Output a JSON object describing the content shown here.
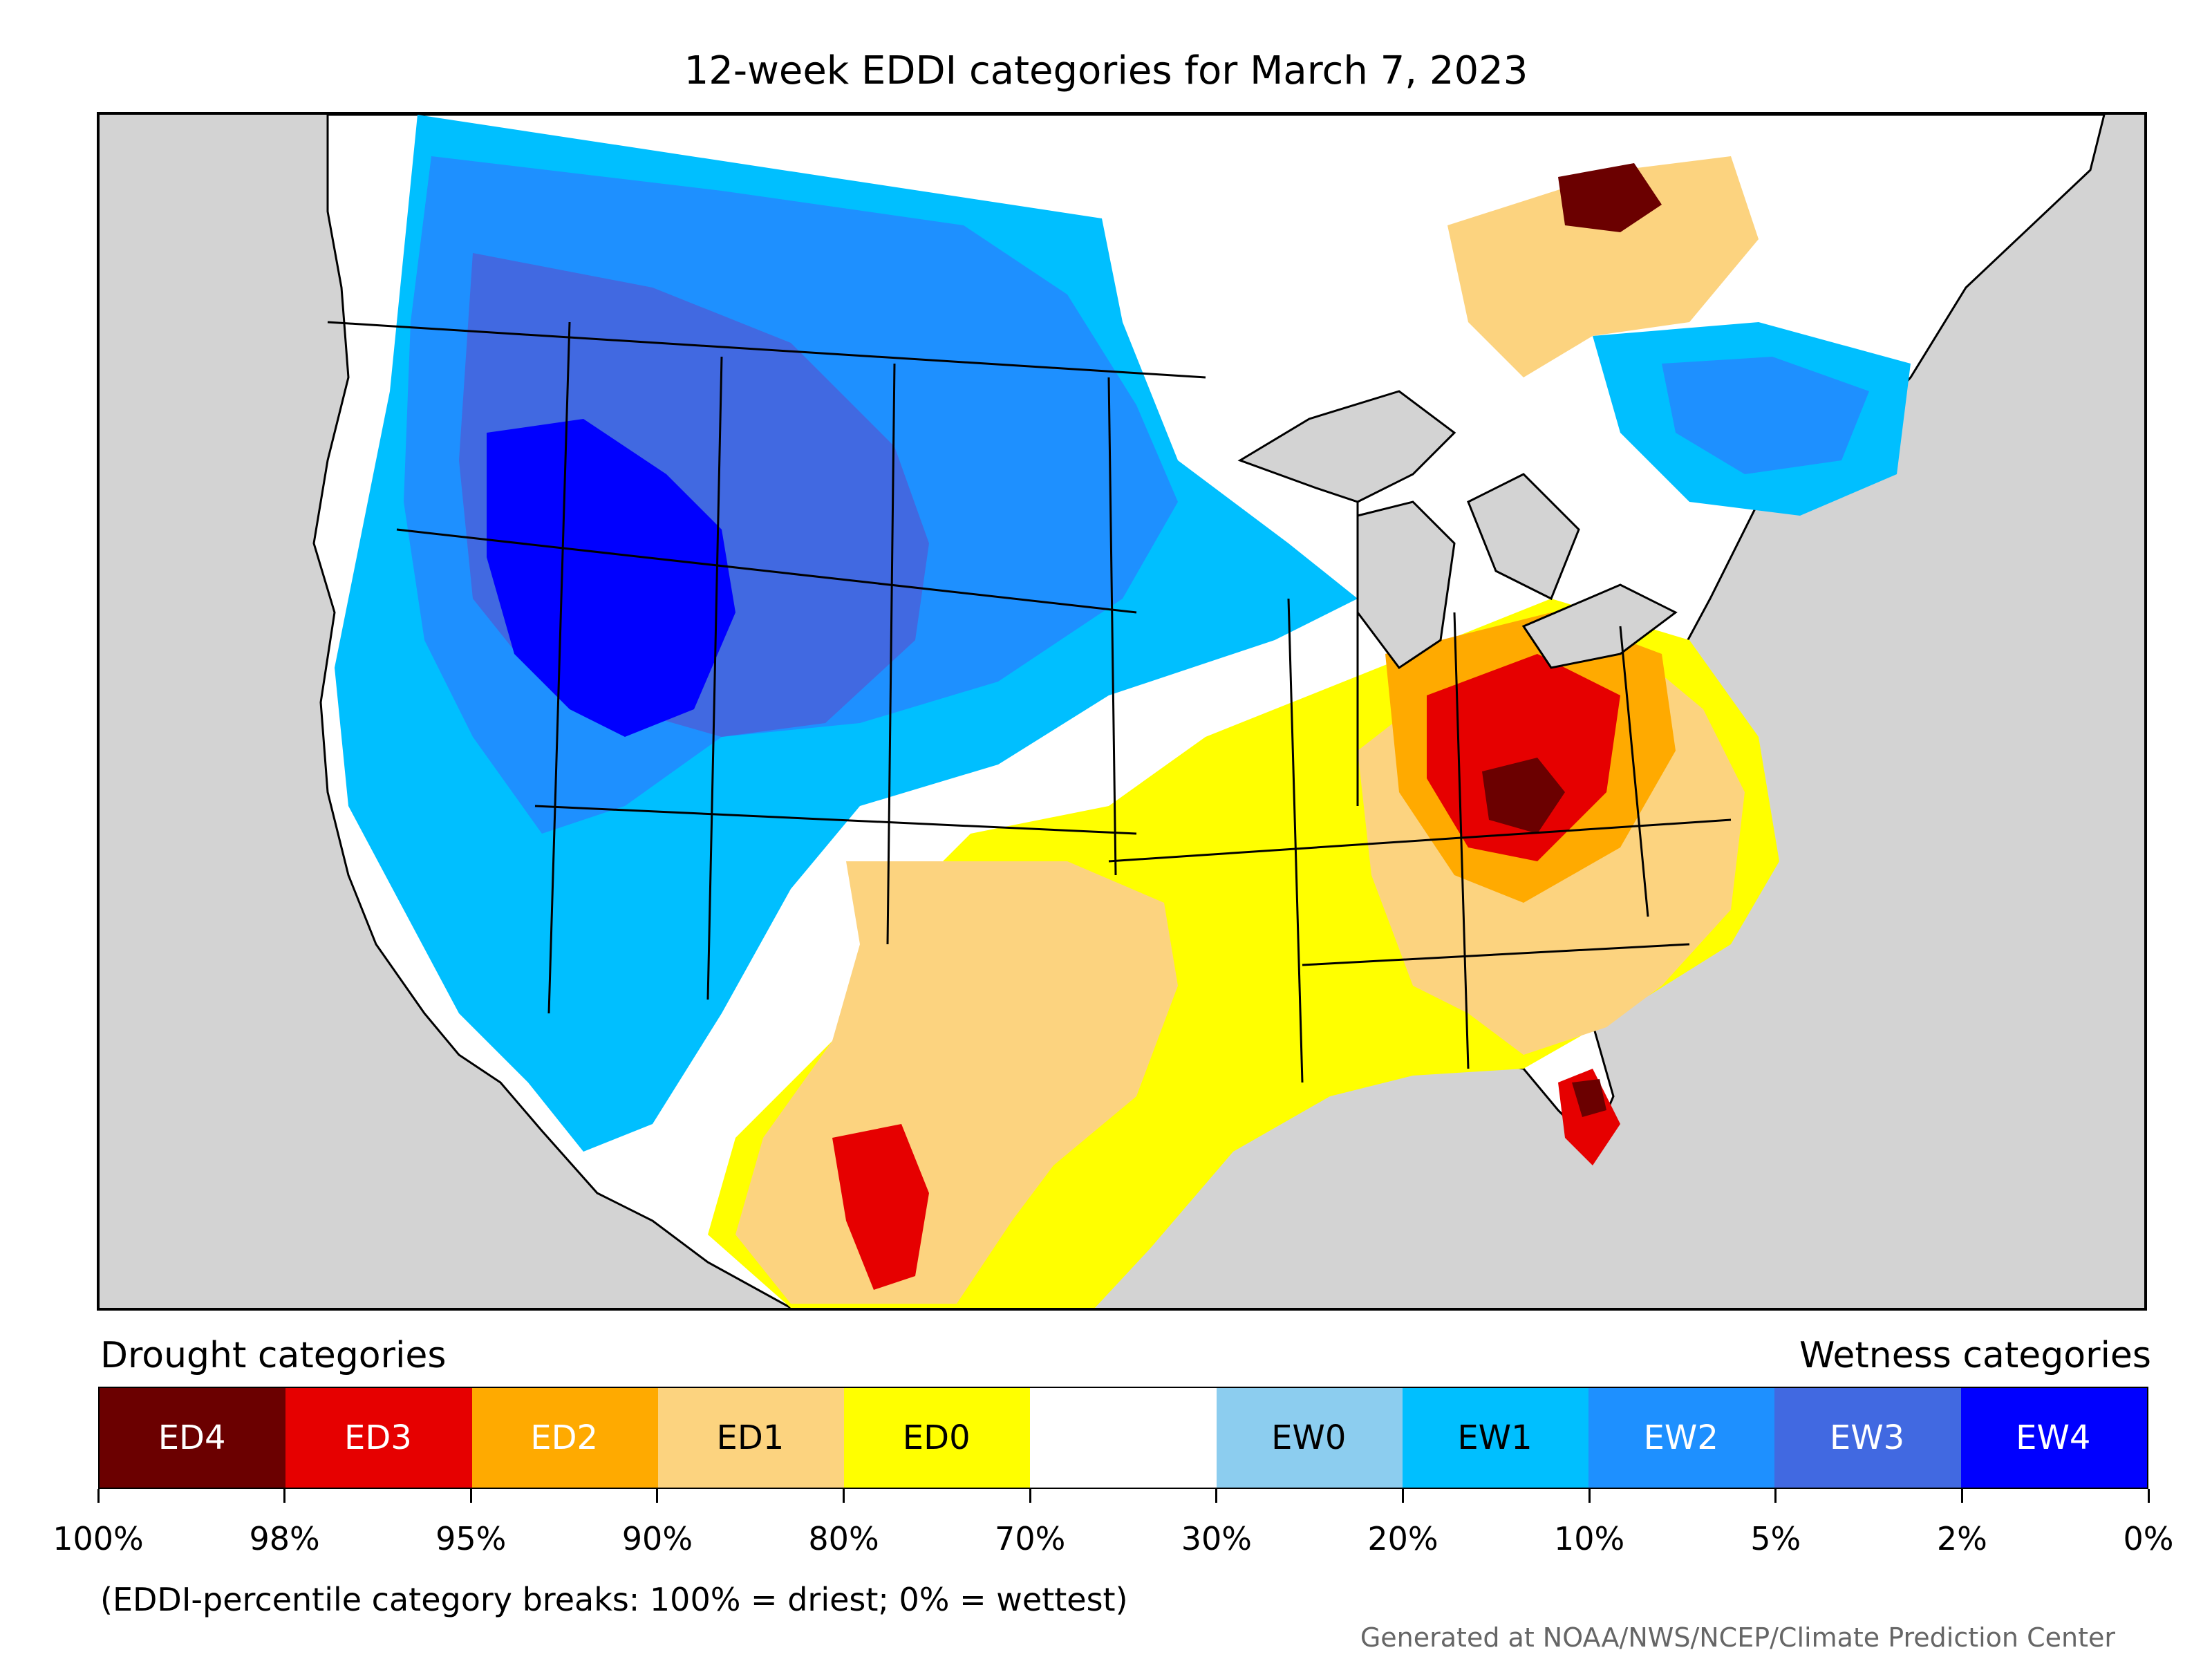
{
  "title": "12-week EDDI categories for March 7, 2023",
  "legend": {
    "drought_title": "Drought categories",
    "wetness_title": "Wetness categories",
    "categories": [
      {
        "label": "ED4",
        "color": "#6b0000",
        "text_color": "#ffffff"
      },
      {
        "label": "ED3",
        "color": "#e60000",
        "text_color": "#ffffff"
      },
      {
        "label": "ED2",
        "color": "#ffaa00",
        "text_color": "#ffffff"
      },
      {
        "label": "ED1",
        "color": "#fcd37f",
        "text_color": "#000000"
      },
      {
        "label": "ED0",
        "color": "#ffff00",
        "text_color": "#000000"
      },
      {
        "label": "",
        "color": "#ffffff",
        "text_color": "#000000"
      },
      {
        "label": "EW0",
        "color": "#8ccdef",
        "text_color": "#000000"
      },
      {
        "label": "EW1",
        "color": "#00bfff",
        "text_color": "#000000"
      },
      {
        "label": "EW2",
        "color": "#1e90ff",
        "text_color": "#ffffff"
      },
      {
        "label": "EW3",
        "color": "#4169e1",
        "text_color": "#ffffff"
      },
      {
        "label": "EW4",
        "color": "#0000ff",
        "text_color": "#ffffff"
      }
    ],
    "breaks": [
      "100%",
      "98%",
      "95%",
      "90%",
      "80%",
      "70%",
      "30%",
      "20%",
      "10%",
      "5%",
      "2%",
      "0%"
    ],
    "note": "(EDDI-percentile category breaks: 100% = driest; 0% = wettest)"
  },
  "credit": "Generated at NOAA/NWS/NCEP/Climate Prediction Center"
}
